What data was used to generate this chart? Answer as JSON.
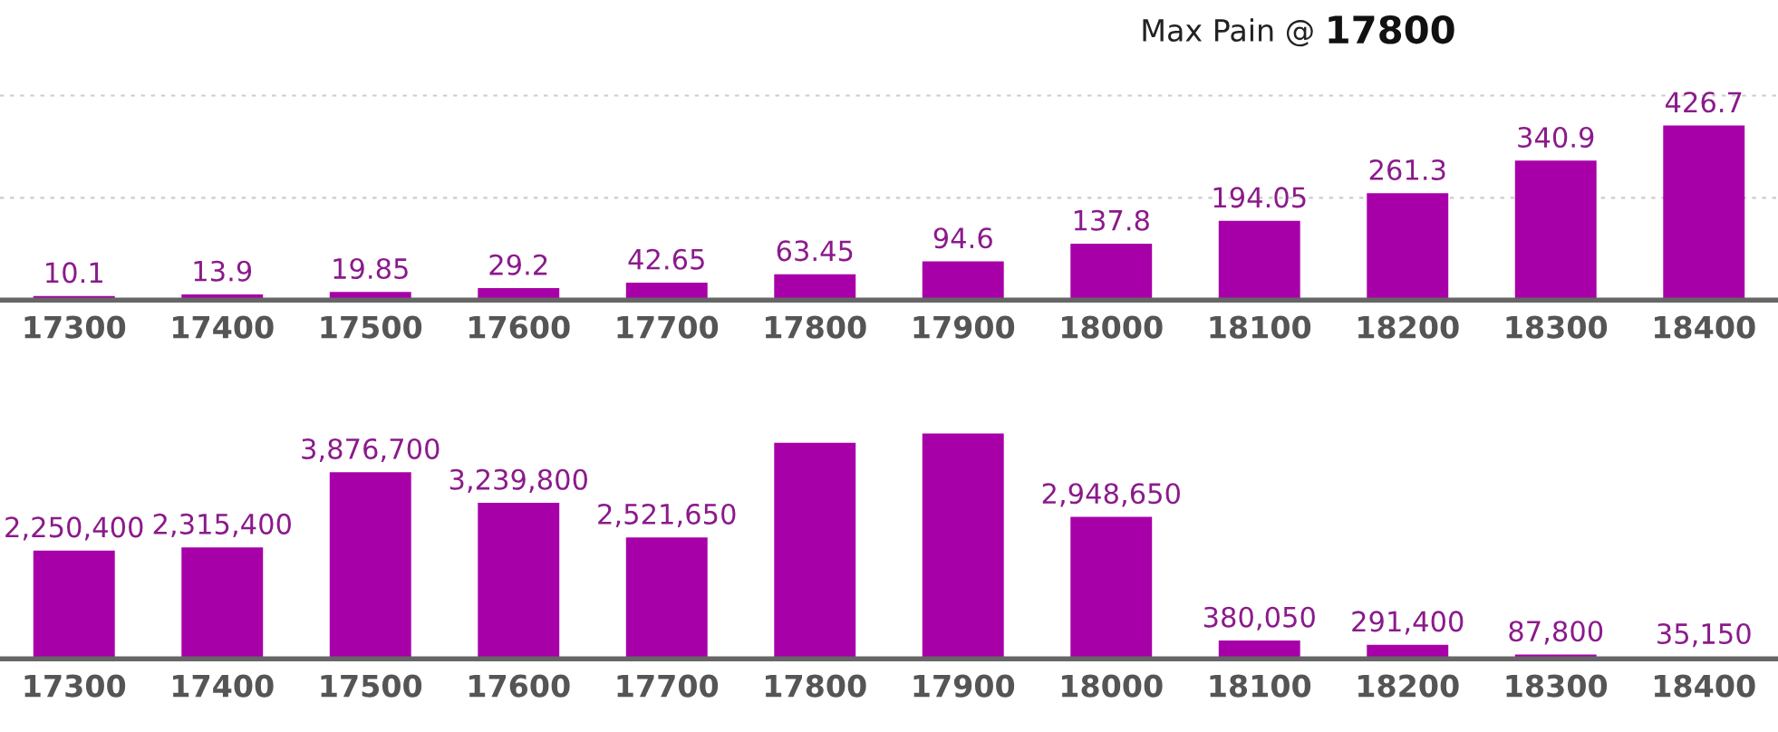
{
  "chart_data": [
    {
      "type": "bar",
      "title": "Max Pain @ 17800",
      "categories": [
        "17300",
        "17400",
        "17500",
        "17600",
        "17700",
        "17800",
        "17900",
        "18000",
        "18100",
        "18200",
        "18300",
        "18400"
      ],
      "values": [
        10.1,
        13.9,
        19.85,
        29.2,
        42.65,
        63.45,
        94.6,
        137.8,
        194.05,
        261.3,
        340.9,
        426.7
      ],
      "color": "#a800a8",
      "data_labels": true,
      "ref_lines": [
        {
          "axis": "y",
          "value": 250,
          "color": "#cccccc",
          "line_style": "dotted"
        },
        {
          "axis": "y",
          "value": 500,
          "color": "#cccccc",
          "line_style": "dotted"
        }
      ],
      "tick_labels": "x"
    },
    {
      "type": "bar",
      "categories": [
        "17300",
        "17400",
        "17500",
        "17600",
        "17700",
        "17800",
        "17900",
        "18000",
        "18100",
        "18200",
        "18300",
        "18400"
      ],
      "values": [
        2250400,
        2315400,
        3876700,
        3239800,
        2521650,
        4490000,
        4680000,
        2948650,
        380050,
        291400,
        87800,
        35150
      ],
      "color": "#a800a8",
      "value_labels": [
        "2,250,400",
        "2,315,400",
        "3,876,700",
        "3,239,800",
        "2,521,650",
        null,
        null,
        "2,948,650",
        "380,050",
        "291,400",
        "87,800",
        "35,150"
      ],
      "tick_labels": "x"
    }
  ]
}
